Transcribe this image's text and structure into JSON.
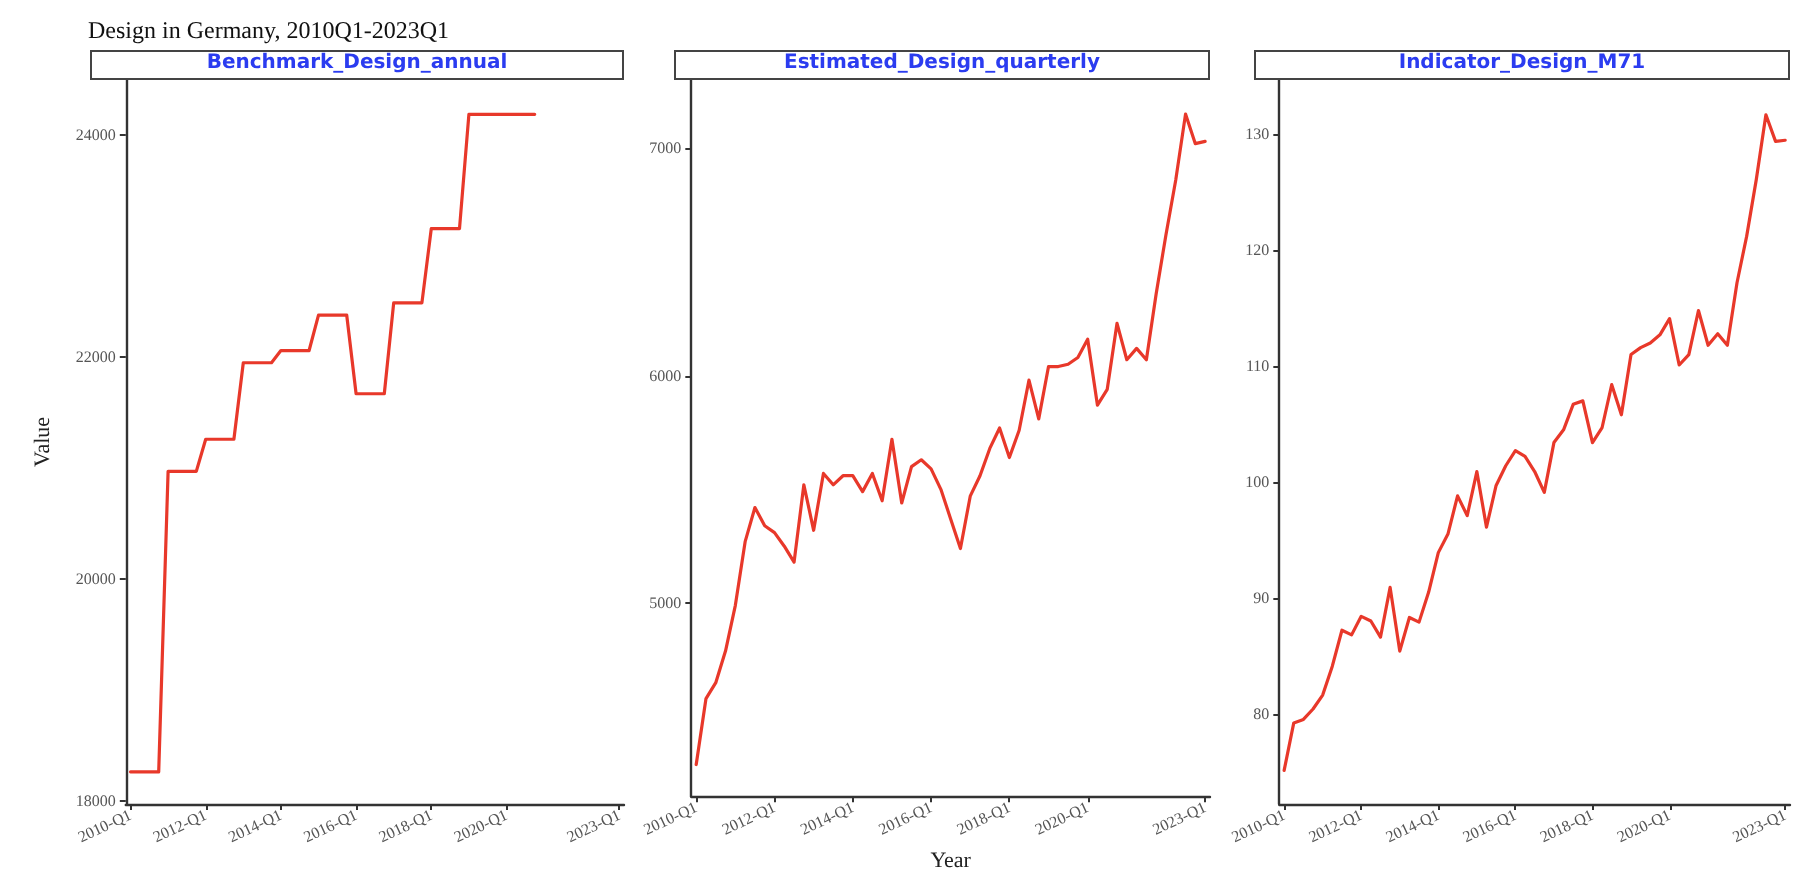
{
  "chart_data": [
    {
      "type": "line",
      "title": "Benchmark_Design_annual",
      "ylabel": "Value",
      "annotations": [
        "Design in Germany, 2010Q1-2023Q1"
      ],
      "grid": false,
      "marker": "none",
      "categories": [
        "2010-Q1",
        null,
        null,
        null,
        null,
        null,
        null,
        null,
        "2012-Q1",
        null,
        null,
        null,
        null,
        null,
        null,
        null,
        "2014-Q1",
        null,
        null,
        null,
        null,
        null,
        null,
        null,
        "2016-Q1",
        null,
        null,
        null,
        null,
        null,
        null,
        null,
        "2018-Q1",
        null,
        null,
        null,
        null,
        null,
        null,
        null,
        "2020-Q1",
        null,
        null,
        null,
        null,
        null,
        null,
        null,
        null,
        null,
        null,
        null,
        "2023-Q1"
      ],
      "series": [
        {
          "color": "#e8382a",
          "values": [
            18260,
            18260,
            18260,
            18260,
            20970,
            20970,
            20970,
            20970,
            21260,
            21260,
            21260,
            21260,
            21950,
            21950,
            21950,
            21950,
            22060,
            22060,
            22060,
            22060,
            22380,
            22380,
            22380,
            22380,
            21670,
            21670,
            21670,
            21670,
            22490,
            22490,
            22490,
            22490,
            23160,
            23160,
            23160,
            23160,
            24190,
            24190,
            24190,
            24190,
            24190,
            24190,
            24190,
            24190,
            null,
            null,
            null,
            null,
            null,
            null,
            null,
            null,
            null
          ]
        }
      ],
      "ylim": [
        17970,
        24500
      ],
      "yticks": [
        18000,
        20000,
        22000,
        24000
      ]
    },
    {
      "type": "line",
      "title": "Estimated_Design_quarterly",
      "xlabel": "Year",
      "grid": false,
      "marker": "none",
      "categories": [
        "2010-Q1",
        null,
        null,
        null,
        null,
        null,
        null,
        null,
        "2012-Q1",
        null,
        null,
        null,
        null,
        null,
        null,
        null,
        "2014-Q1",
        null,
        null,
        null,
        null,
        null,
        null,
        null,
        "2016-Q1",
        null,
        null,
        null,
        null,
        null,
        null,
        null,
        "2018-Q1",
        null,
        null,
        null,
        null,
        null,
        null,
        null,
        "2020-Q1",
        null,
        null,
        null,
        null,
        null,
        null,
        null,
        null,
        null,
        null,
        null,
        "2023-Q1"
      ],
      "series": [
        {
          "color": "#e8382a",
          "values": [
            4290,
            4580,
            4650,
            4790,
            4990,
            5270,
            5420,
            5340,
            5310,
            5250,
            5180,
            5520,
            5320,
            5570,
            5520,
            5560,
            5560,
            5490,
            5570,
            5450,
            5720,
            5440,
            5600,
            5630,
            5590,
            5500,
            5370,
            5240,
            5470,
            5560,
            5680,
            5770,
            5640,
            5760,
            5980,
            5810,
            6040,
            6040,
            6050,
            6080,
            6160,
            5870,
            5940,
            6230,
            6070,
            6120,
            6070,
            6360,
            6620,
            6860,
            7150,
            7020,
            7030
          ]
        }
      ],
      "ylim": [
        4150,
        7300
      ],
      "yticks": [
        5000,
        6000,
        7000
      ]
    },
    {
      "type": "line",
      "title": "Indicator_Design_M71",
      "grid": false,
      "marker": "none",
      "categories": [
        "2010-Q1",
        null,
        null,
        null,
        null,
        null,
        null,
        null,
        "2012-Q1",
        null,
        null,
        null,
        null,
        null,
        null,
        null,
        "2014-Q1",
        null,
        null,
        null,
        null,
        null,
        null,
        null,
        "2016-Q1",
        null,
        null,
        null,
        null,
        null,
        null,
        null,
        "2018-Q1",
        null,
        null,
        null,
        null,
        null,
        null,
        null,
        "2020-Q1",
        null,
        null,
        null,
        null,
        null,
        null,
        null,
        null,
        null,
        null,
        null,
        "2023-Q1"
      ],
      "series": [
        {
          "color": "#e8382a",
          "values": [
            75.1,
            79.2,
            79.5,
            80.4,
            81.6,
            84.1,
            87.2,
            86.8,
            88.4,
            88.0,
            86.6,
            90.9,
            85.4,
            88.3,
            87.9,
            90.5,
            93.9,
            95.5,
            98.8,
            97.1,
            100.9,
            96.1,
            99.7,
            101.4,
            102.7,
            102.2,
            100.9,
            99.1,
            103.4,
            104.5,
            106.7,
            107.0,
            103.4,
            104.7,
            108.4,
            105.8,
            111.0,
            111.6,
            112.0,
            112.7,
            114.1,
            110.1,
            111.0,
            114.8,
            111.8,
            112.8,
            111.8,
            117.2,
            121.2,
            126.1,
            131.7,
            129.4,
            129.5
          ]
        }
      ],
      "ylim": [
        72.2,
        134.7
      ],
      "yticks": [
        80,
        90,
        100,
        110,
        120,
        130
      ]
    }
  ]
}
